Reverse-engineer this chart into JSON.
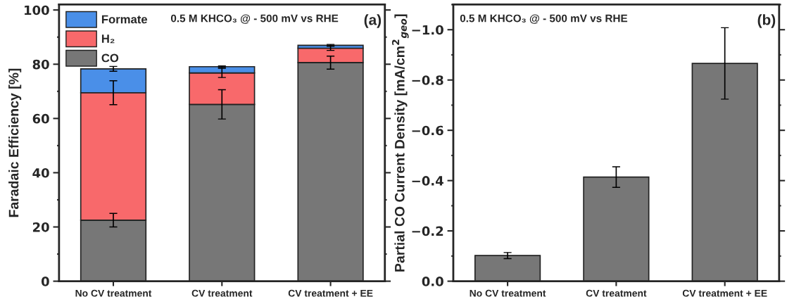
{
  "chart_data": [
    {
      "type": "bar",
      "stacked": true,
      "ylabel": "Faradaic Efficiency [%]",
      "categories": [
        "No CV treatment",
        "CV treatment",
        "CV treatment + EE"
      ],
      "series": [
        {
          "name": "CO",
          "color": "#777777",
          "values": [
            22.5,
            65.2,
            80.6
          ],
          "errors": [
            2.5,
            5.4,
            2.4
          ]
        },
        {
          "name": "H₂",
          "color": "#f8696b",
          "values": [
            47.0,
            11.6,
            5.3
          ],
          "errors": [
            4.4,
            1.7,
            0.8
          ]
        },
        {
          "name": "Formate",
          "color": "#4a8fe8",
          "values": [
            8.8,
            2.3,
            1.1
          ],
          "errors": [
            0.9,
            0.3,
            0.3
          ]
        }
      ],
      "ylim": [
        0,
        102
      ],
      "yticks": [
        0,
        20,
        40,
        60,
        80,
        100
      ],
      "legend": "top left",
      "annotations": [
        "0.5 M KHCO₃ @ - 500 mV vs RHE",
        "(a)"
      ]
    },
    {
      "type": "bar",
      "ylabel": "Partial CO Current Density [mA/cm$^{2}$$_{geo}$]",
      "categories": [
        "No CV treatment",
        "CV treatment",
        "CV treatment + EE"
      ],
      "series": [
        {
          "color": "#777777",
          "values": [
            -0.102,
            -0.414,
            -0.866
          ],
          "errors": [
            0.012,
            0.041,
            0.142
          ]
        }
      ],
      "ylim": [
        0,
        -1.1
      ],
      "yticks": [
        {
          "value": 0,
          "label": "0.0"
        },
        {
          "value": -0.2,
          "label": "−0.2"
        },
        {
          "value": -0.4,
          "label": "−0.4"
        },
        {
          "value": -0.6,
          "label": "−0.6"
        },
        {
          "value": -0.8,
          "label": "−0.8"
        },
        {
          "value": -1.0,
          "label": "−1.0"
        }
      ],
      "annotations": [
        "0.5 M KHCO₃ @ - 500 mV vs RHE",
        "(b)"
      ]
    }
  ]
}
